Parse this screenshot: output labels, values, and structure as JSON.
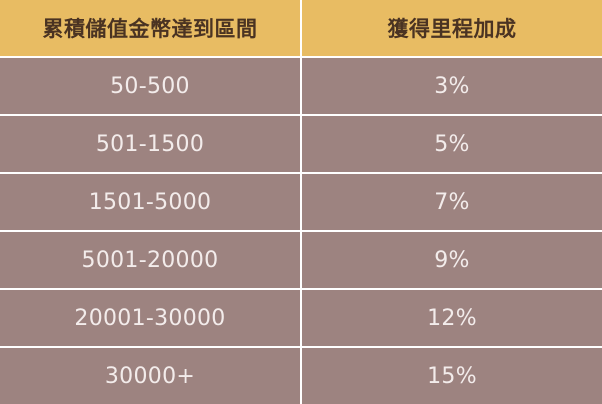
{
  "table": {
    "headers": [
      "累積儲值金幣達到區間",
      "獲得里程加成"
    ],
    "rows": [
      [
        "50-500",
        "3%"
      ],
      [
        "501-1500",
        "5%"
      ],
      [
        "1501-5000",
        "7%"
      ],
      [
        "5001-20000",
        "9%"
      ],
      [
        "20001-30000",
        "12%"
      ],
      [
        "30000+",
        "15%"
      ]
    ]
  },
  "colors": {
    "header_bg": "#e8bc63",
    "header_text": "#4a3322",
    "row_bg": "#9d8380",
    "row_text": "#f3eceb",
    "divider": "#ffffff"
  }
}
